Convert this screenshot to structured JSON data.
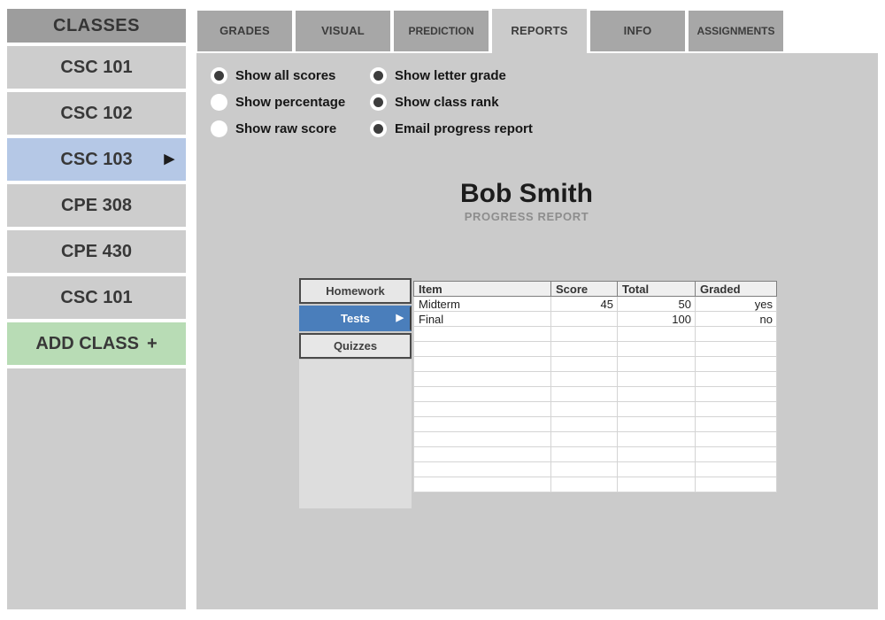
{
  "sidebar": {
    "header": "CLASSES",
    "items": [
      {
        "label": "CSC 101",
        "state": "default"
      },
      {
        "label": "CSC 102",
        "state": "default"
      },
      {
        "label": "CSC 103",
        "state": "selected",
        "arrow": "▶"
      },
      {
        "label": "CPE 308",
        "state": "default"
      },
      {
        "label": "CPE 430",
        "state": "default"
      },
      {
        "label": "CSC 101",
        "state": "default"
      },
      {
        "label": "ADD CLASS",
        "state": "add",
        "suffix": "+"
      }
    ]
  },
  "tabs": [
    {
      "label": "GRADES",
      "active": false
    },
    {
      "label": "VISUAL",
      "active": false
    },
    {
      "label": "PREDICTION",
      "active": false
    },
    {
      "label": "REPORTS",
      "active": true
    },
    {
      "label": "INFO",
      "active": false
    },
    {
      "label": "ASSIGNMENTS",
      "active": false
    }
  ],
  "options": {
    "left": [
      {
        "label": "Show all scores",
        "selected": true
      },
      {
        "label": "Show percentage",
        "selected": false
      },
      {
        "label": "Show raw score",
        "selected": false
      }
    ],
    "right": [
      {
        "label": "Show letter grade",
        "selected": true
      },
      {
        "label": "Show class rank",
        "selected": true
      },
      {
        "label": "Email progress report",
        "selected": true
      }
    ]
  },
  "report": {
    "student_name": "Bob Smith",
    "subtitle": "PROGRESS REPORT"
  },
  "category_tabs": [
    {
      "label": "Homework",
      "active": false
    },
    {
      "label": "Tests",
      "active": true,
      "arrow": "▶"
    },
    {
      "label": "Quizzes",
      "active": false
    }
  ],
  "table": {
    "columns": [
      "Item",
      "Score",
      "Total",
      "Graded"
    ],
    "rows": [
      [
        "Midterm",
        "45",
        "50",
        "yes"
      ],
      [
        "Final",
        "",
        "100",
        "no"
      ]
    ],
    "empty_row_count": 11
  },
  "colors": {
    "selected_class_blue": "#b5c8e6",
    "add_class_green": "#b8dcb5",
    "active_category_blue": "#4a7ebb",
    "sidebar_header_gray": "#9d9d9d",
    "item_gray": "#cdcdcd",
    "inactive_tab_gray": "#a7a7a7",
    "content_gray": "#cbcbcb"
  }
}
